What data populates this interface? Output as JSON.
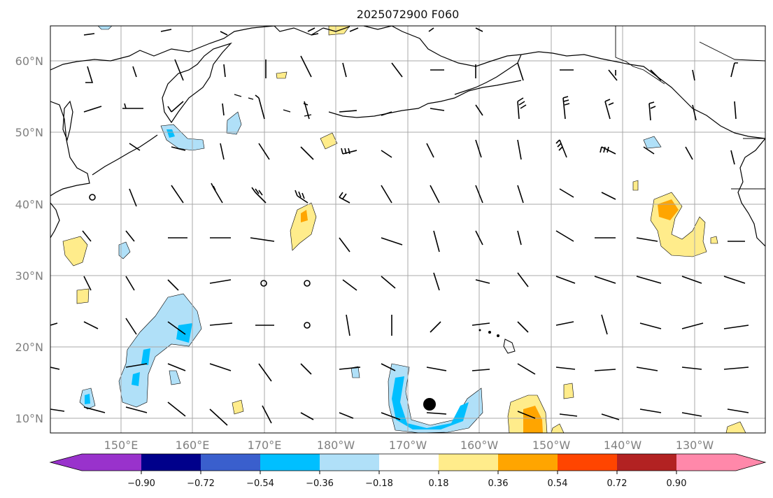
{
  "title": "2025072900 F060",
  "lat_labels": [
    "60°N",
    "50°N",
    "40°N",
    "30°N",
    "20°N",
    "10°N"
  ],
  "lon_labels": [
    "150°E",
    "160°E",
    "170°E",
    "180°W",
    "170°W",
    "160°W",
    "150°W",
    "140°W",
    "130°W"
  ],
  "colorbar": {
    "tick_labels": [
      "−0.90",
      "−0.72",
      "−0.54",
      "−0.36",
      "−0.18",
      "0.18",
      "0.36",
      "0.54",
      "0.72",
      "0.90"
    ],
    "colors": [
      "#9932cc",
      "#00008b",
      "#3a5fcd",
      "#00bfff",
      "#b0e0f8",
      "#ffffff",
      "#ffec8b",
      "#ffa500",
      "#ff4500",
      "#b22222",
      "#ff88aa"
    ]
  },
  "map": {
    "extent_lon": [
      140,
      240
    ],
    "extent_lat": [
      8,
      65
    ],
    "grid": true,
    "fill_colors": {
      "light_blue": "#b0e0f8",
      "blue": "#00bfff",
      "light_yellow": "#ffec8b",
      "orange": "#ffa500"
    },
    "marker": {
      "lon": 194,
      "lat": 12,
      "symbol": "filled-circle"
    }
  }
}
